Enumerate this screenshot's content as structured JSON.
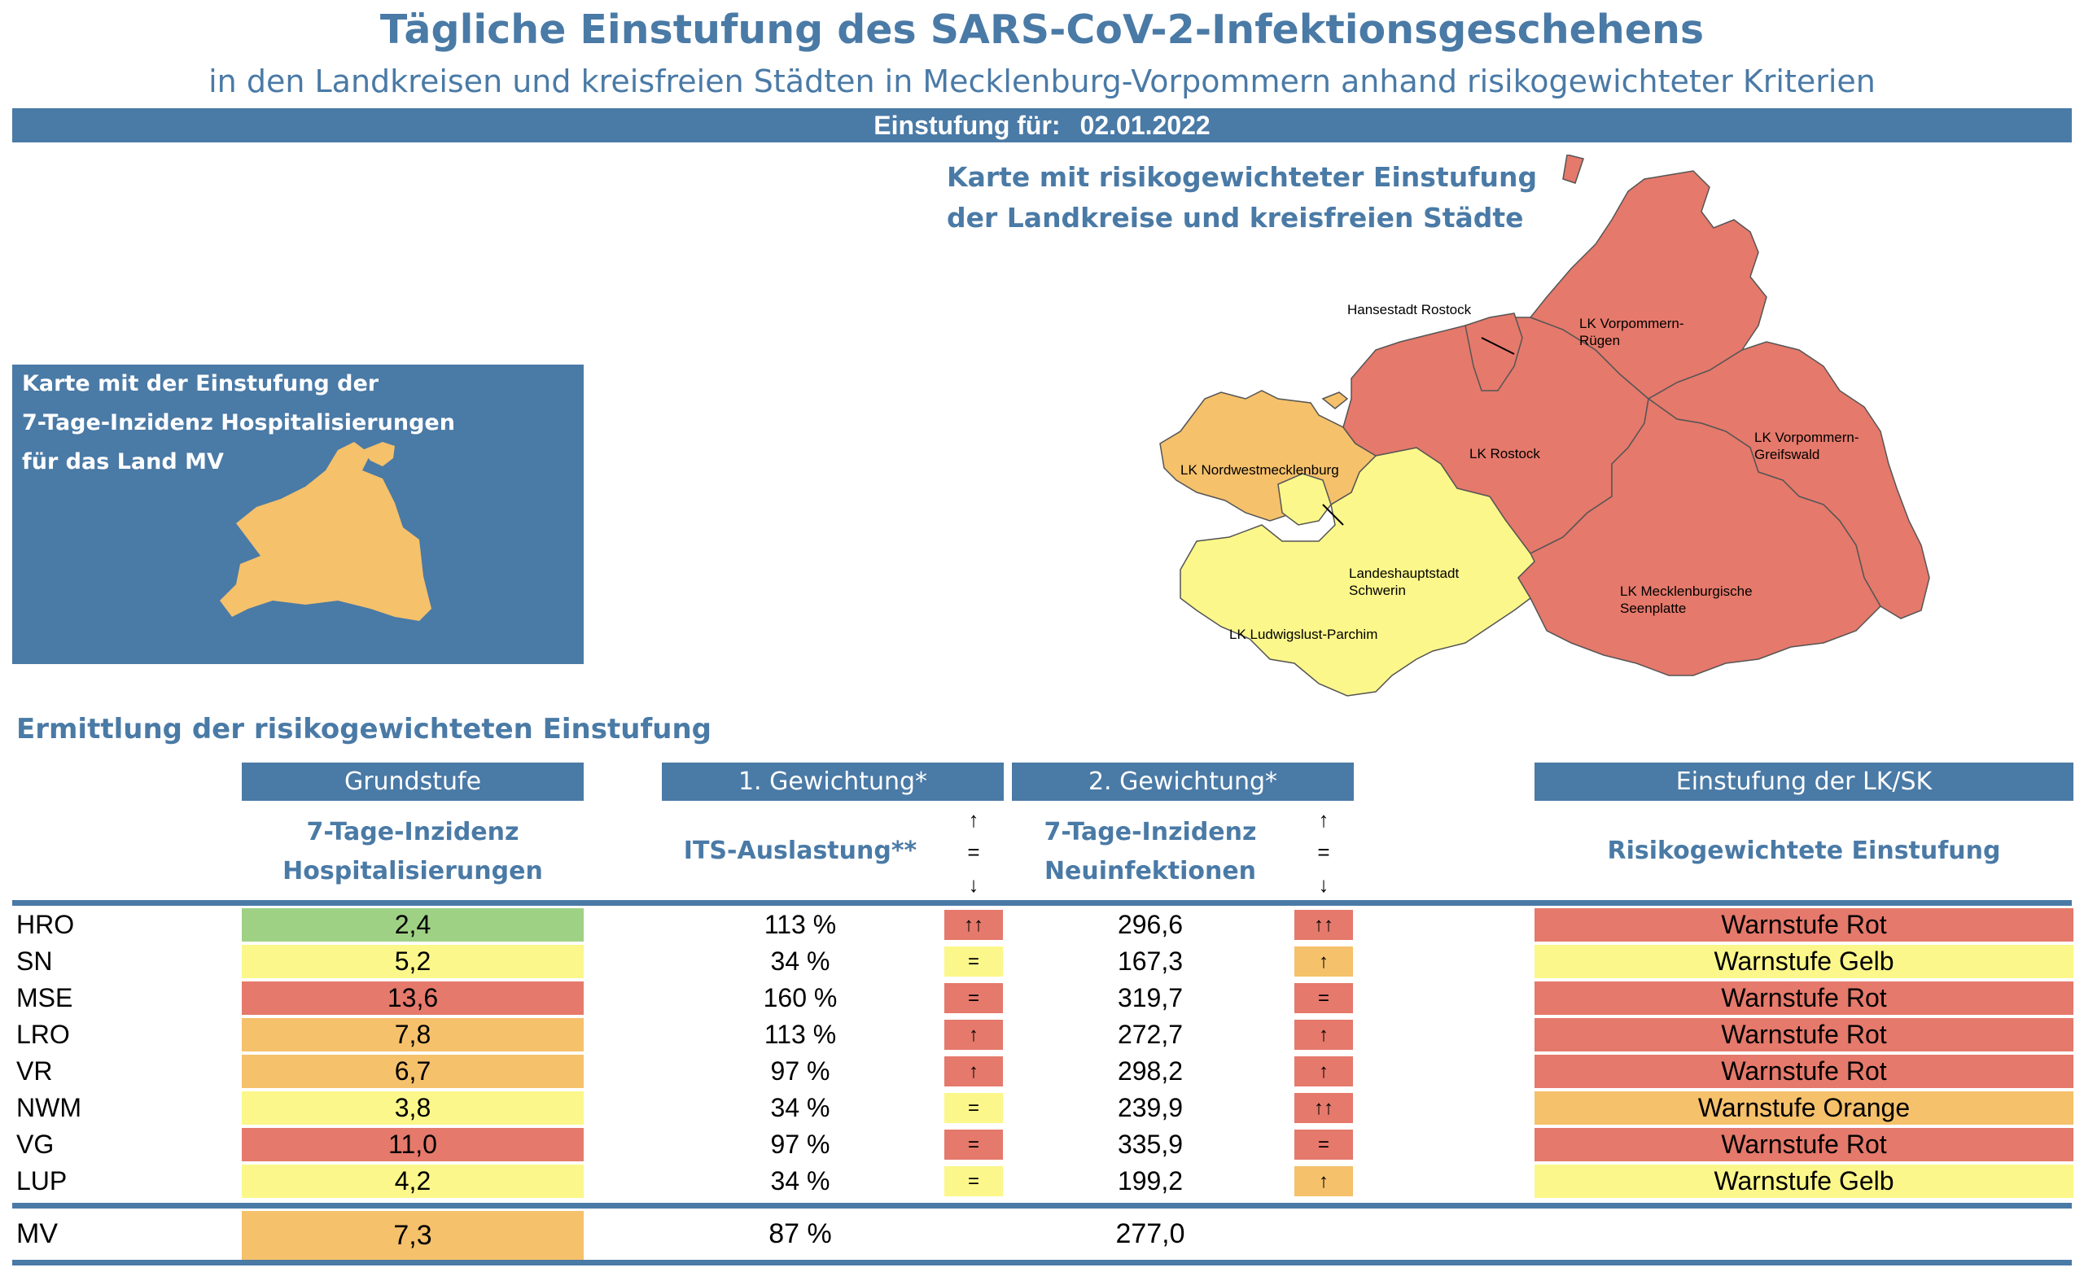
{
  "header": {
    "title": "Tägliche Einstufung des SARS-CoV-2-Infektionsgeschehens",
    "subtitle": "in den Landkreisen und kreisfreien Städten in Mecklenburg-Vorpommern anhand risikogewichteter Kriterien",
    "date_label": "Einstufung für:",
    "date_value": "02.01.2022"
  },
  "mv_map": {
    "line1": "Karte mit der Einstufung der",
    "line2": "7-Tage-Inzidenz Hospitalisierungen",
    "line3": "für das Land MV"
  },
  "district_map": {
    "title_line1": "Karte mit risikogewichteter Einstufung",
    "title_line2": "der Landkreise und kreisfreien Städte",
    "labels": {
      "hro": "Hansestadt Rostock",
      "vr1": "LK Vorpommern-",
      "vr2": "Rügen",
      "lro": "LK Rostock",
      "vg1": "LK Vorpommern-",
      "vg2": "Greifswald",
      "nwm": "LK Nordwestmecklenburg",
      "sn1": "Landeshauptstadt",
      "sn2": "Schwerin",
      "mse1": "LK Mecklenburgische",
      "mse2": "Seenplatte",
      "lup": "LK Ludwigslust-Parchim"
    }
  },
  "colors": {
    "accent": "#4a7aa6",
    "rot": "#e5796b",
    "orange": "#f5c16b",
    "gelb": "#fbf78a",
    "gruen": "#9fd185"
  },
  "table": {
    "section_title": "Ermittlung der risikogewichteten Einstufung",
    "headers": {
      "grundstufe": "Grundstufe",
      "gew1": "1. Gewichtung*",
      "gew2": "2. Gewichtung*",
      "einstufung": "Einstufung der LK/SK"
    },
    "sub": {
      "inz_hosp_1": "7-Tage-Inzidenz",
      "inz_hosp_2": "Hospitalisierungen",
      "its": "ITS-Auslastung**",
      "inz_neu_1": "7-Tage-Inzidenz",
      "inz_neu_2": "Neuinfektionen",
      "risk": "Risikogewichtete Einstufung"
    },
    "arrow_key": {
      "up": "↑",
      "eq": "=",
      "down": "↓"
    },
    "rows": [
      {
        "label": "HRO",
        "hosp": "2,4",
        "hosp_color": "#9fd185",
        "its": "113 %",
        "its_arrow": "↑↑",
        "its_color": "#e5796b",
        "inz": "296,6",
        "inz_arrow": "↑↑",
        "inz_color": "#e5796b",
        "stufe": "Warnstufe Rot",
        "stufe_color": "#e5796b"
      },
      {
        "label": "SN",
        "hosp": "5,2",
        "hosp_color": "#fbf78a",
        "its": "34 %",
        "its_arrow": "=",
        "its_color": "#fbf78a",
        "inz": "167,3",
        "inz_arrow": "↑",
        "inz_color": "#f5c16b",
        "stufe": "Warnstufe Gelb",
        "stufe_color": "#fbf78a"
      },
      {
        "label": "MSE",
        "hosp": "13,6",
        "hosp_color": "#e5796b",
        "its": "160 %",
        "its_arrow": "=",
        "its_color": "#e5796b",
        "inz": "319,7",
        "inz_arrow": "=",
        "inz_color": "#e5796b",
        "stufe": "Warnstufe Rot",
        "stufe_color": "#e5796b"
      },
      {
        "label": "LRO",
        "hosp": "7,8",
        "hosp_color": "#f5c16b",
        "its": "113 %",
        "its_arrow": "↑",
        "its_color": "#e5796b",
        "inz": "272,7",
        "inz_arrow": "↑",
        "inz_color": "#e5796b",
        "stufe": "Warnstufe Rot",
        "stufe_color": "#e5796b"
      },
      {
        "label": "VR",
        "hosp": "6,7",
        "hosp_color": "#f5c16b",
        "its": "97 %",
        "its_arrow": "↑",
        "its_color": "#e5796b",
        "inz": "298,2",
        "inz_arrow": "↑",
        "inz_color": "#e5796b",
        "stufe": "Warnstufe Rot",
        "stufe_color": "#e5796b"
      },
      {
        "label": "NWM",
        "hosp": "3,8",
        "hosp_color": "#fbf78a",
        "its": "34 %",
        "its_arrow": "=",
        "its_color": "#fbf78a",
        "inz": "239,9",
        "inz_arrow": "↑↑",
        "inz_color": "#e5796b",
        "stufe": "Warnstufe Orange",
        "stufe_color": "#f5c16b"
      },
      {
        "label": "VG",
        "hosp": "11,0",
        "hosp_color": "#e5796b",
        "its": "97 %",
        "its_arrow": "=",
        "its_color": "#e5796b",
        "inz": "335,9",
        "inz_arrow": "=",
        "inz_color": "#e5796b",
        "stufe": "Warnstufe Rot",
        "stufe_color": "#e5796b"
      },
      {
        "label": "LUP",
        "hosp": "4,2",
        "hosp_color": "#fbf78a",
        "its": "34 %",
        "its_arrow": "=",
        "its_color": "#fbf78a",
        "inz": "199,2",
        "inz_arrow": "↑",
        "inz_color": "#f5c16b",
        "stufe": "Warnstufe Gelb",
        "stufe_color": "#fbf78a"
      }
    ],
    "total": {
      "label": "MV",
      "hosp": "7,3",
      "hosp_color": "#f5c16b",
      "its": "87 %",
      "inz": "277,0"
    }
  }
}
